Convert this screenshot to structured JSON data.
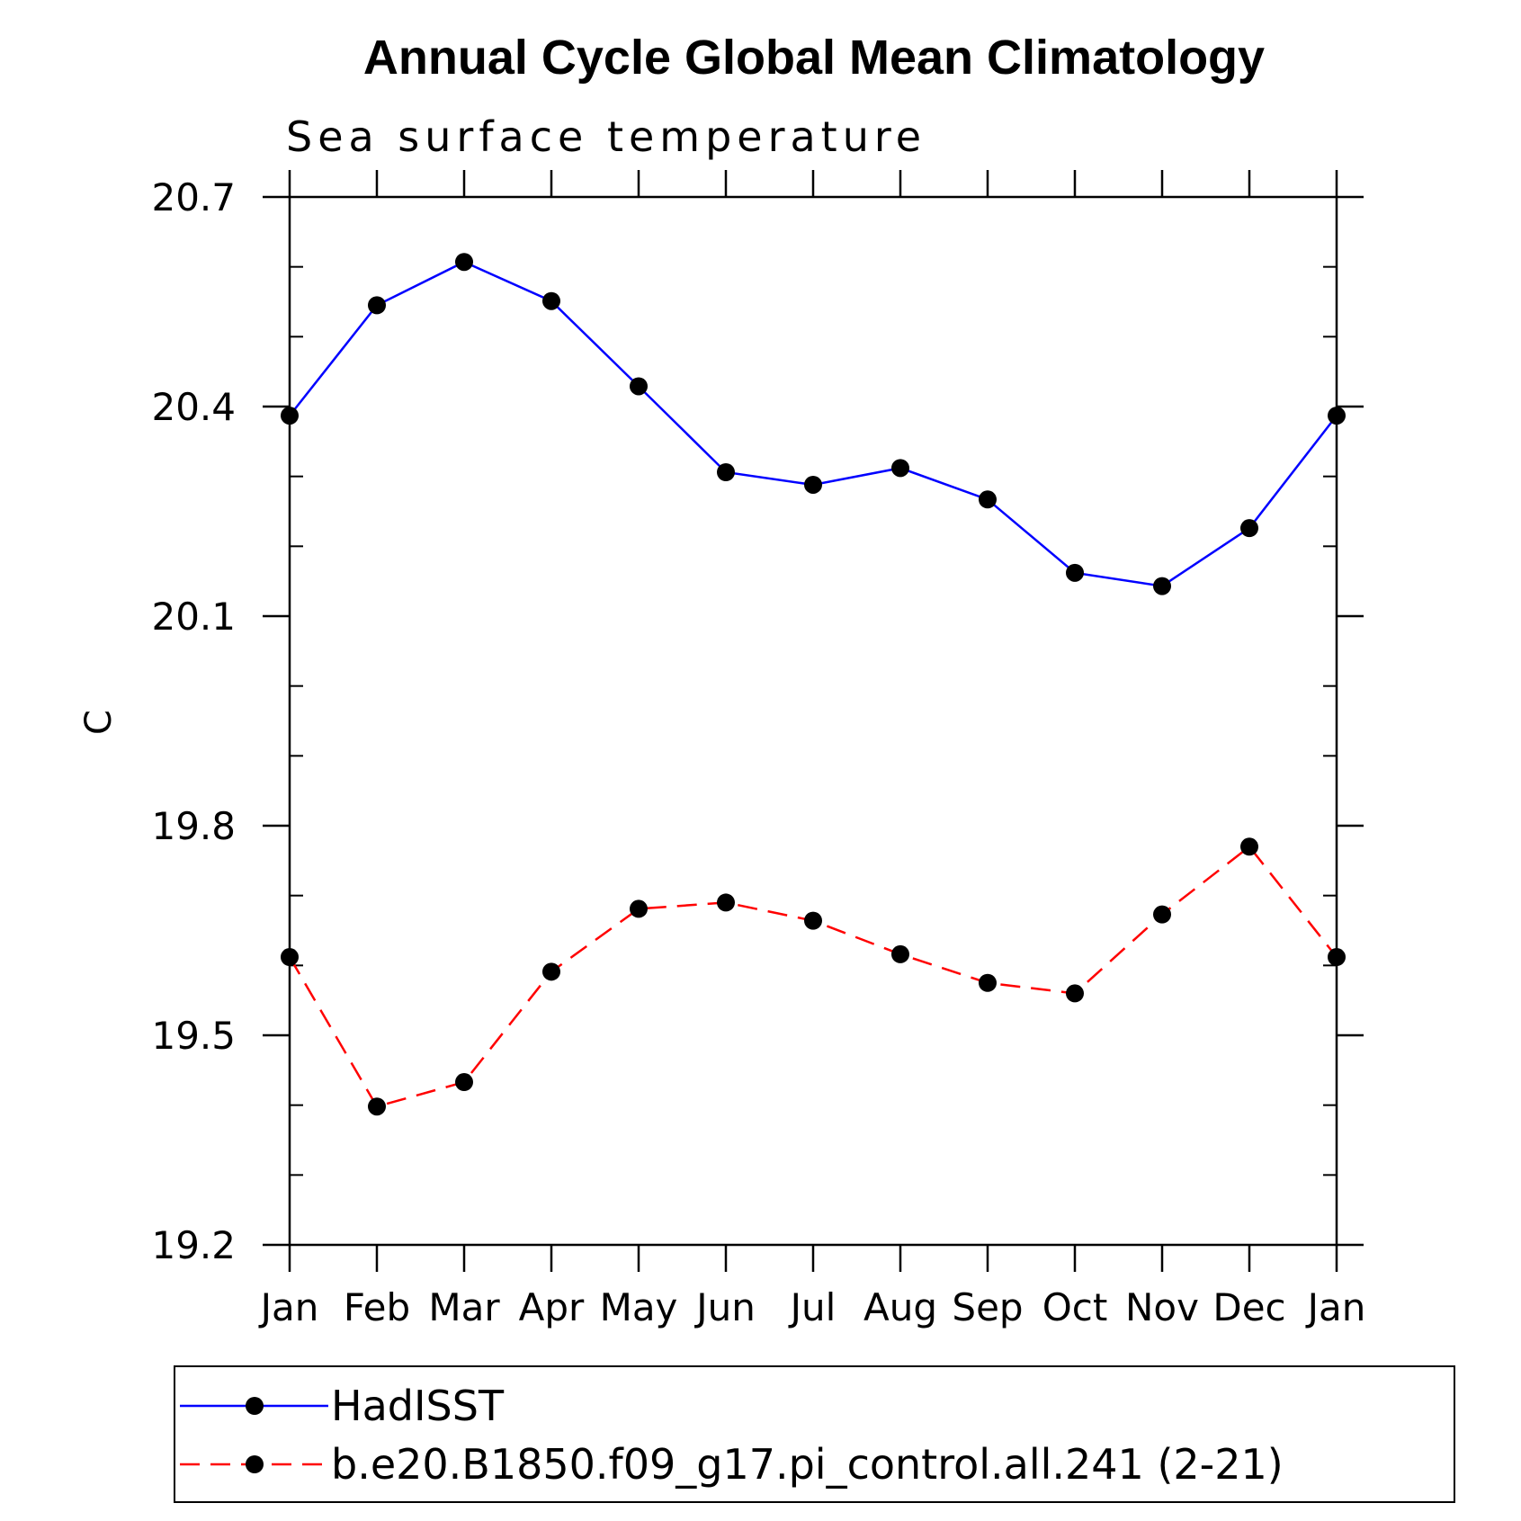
{
  "chart_data": {
    "type": "line",
    "title": "Annual Cycle Global Mean Climatology",
    "subtitle": "Sea surface temperature",
    "ylabel": "C",
    "xlabel": "",
    "categories": [
      "Jan",
      "Feb",
      "Mar",
      "Apr",
      "May",
      "Jun",
      "Jul",
      "Aug",
      "Sep",
      "Oct",
      "Nov",
      "Dec",
      "Jan"
    ],
    "ylim": [
      19.2,
      20.7
    ],
    "yticks": [
      "20.7",
      "20.4",
      "20.1",
      "19.8",
      "19.5",
      "19.2"
    ],
    "ytick_values": [
      20.7,
      20.4,
      20.1,
      19.8,
      19.5,
      19.2
    ],
    "yminor_step": 0.1,
    "grid": false,
    "legend_position": "bottom",
    "series": [
      {
        "name": "HadISST",
        "color": "#0000ff",
        "dash": "solid",
        "marker": "filled-circle",
        "values": [
          20.387,
          20.545,
          20.607,
          20.551,
          20.429,
          20.306,
          20.288,
          20.312,
          20.267,
          20.162,
          20.143,
          20.226,
          20.387
        ]
      },
      {
        "name": "b.e20.B1850.f09_g17.pi_control.all.241 (2-21)",
        "color": "#ff0000",
        "dash": "dashed",
        "marker": "filled-circle",
        "values": [
          19.612,
          19.398,
          19.433,
          19.591,
          19.681,
          19.69,
          19.664,
          19.616,
          19.575,
          19.56,
          19.673,
          19.77,
          19.612
        ]
      }
    ]
  }
}
